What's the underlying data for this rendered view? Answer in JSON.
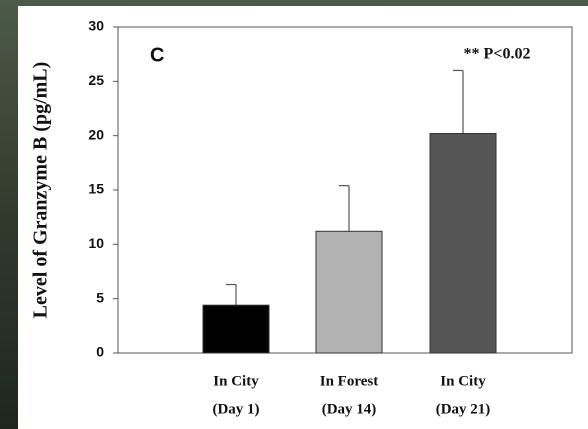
{
  "chart_data": {
    "type": "bar",
    "panel_label": "C",
    "ylabel": "Level of Granzyme B (pg/mL)",
    "annotation": "** P<0.02",
    "categories": [
      [
        "In City",
        "(Day 1)"
      ],
      [
        "In Forest",
        "(Day 14)"
      ],
      [
        "In City",
        "(Day 21)"
      ]
    ],
    "values": [
      4.4,
      11.2,
      20.2
    ],
    "errors": [
      1.9,
      4.2,
      5.8
    ],
    "colors": [
      "#000000",
      "#b3b3b3",
      "#555555"
    ],
    "ylim": [
      0,
      30
    ],
    "yticks": [
      0,
      5,
      10,
      15,
      20,
      25,
      30
    ]
  }
}
